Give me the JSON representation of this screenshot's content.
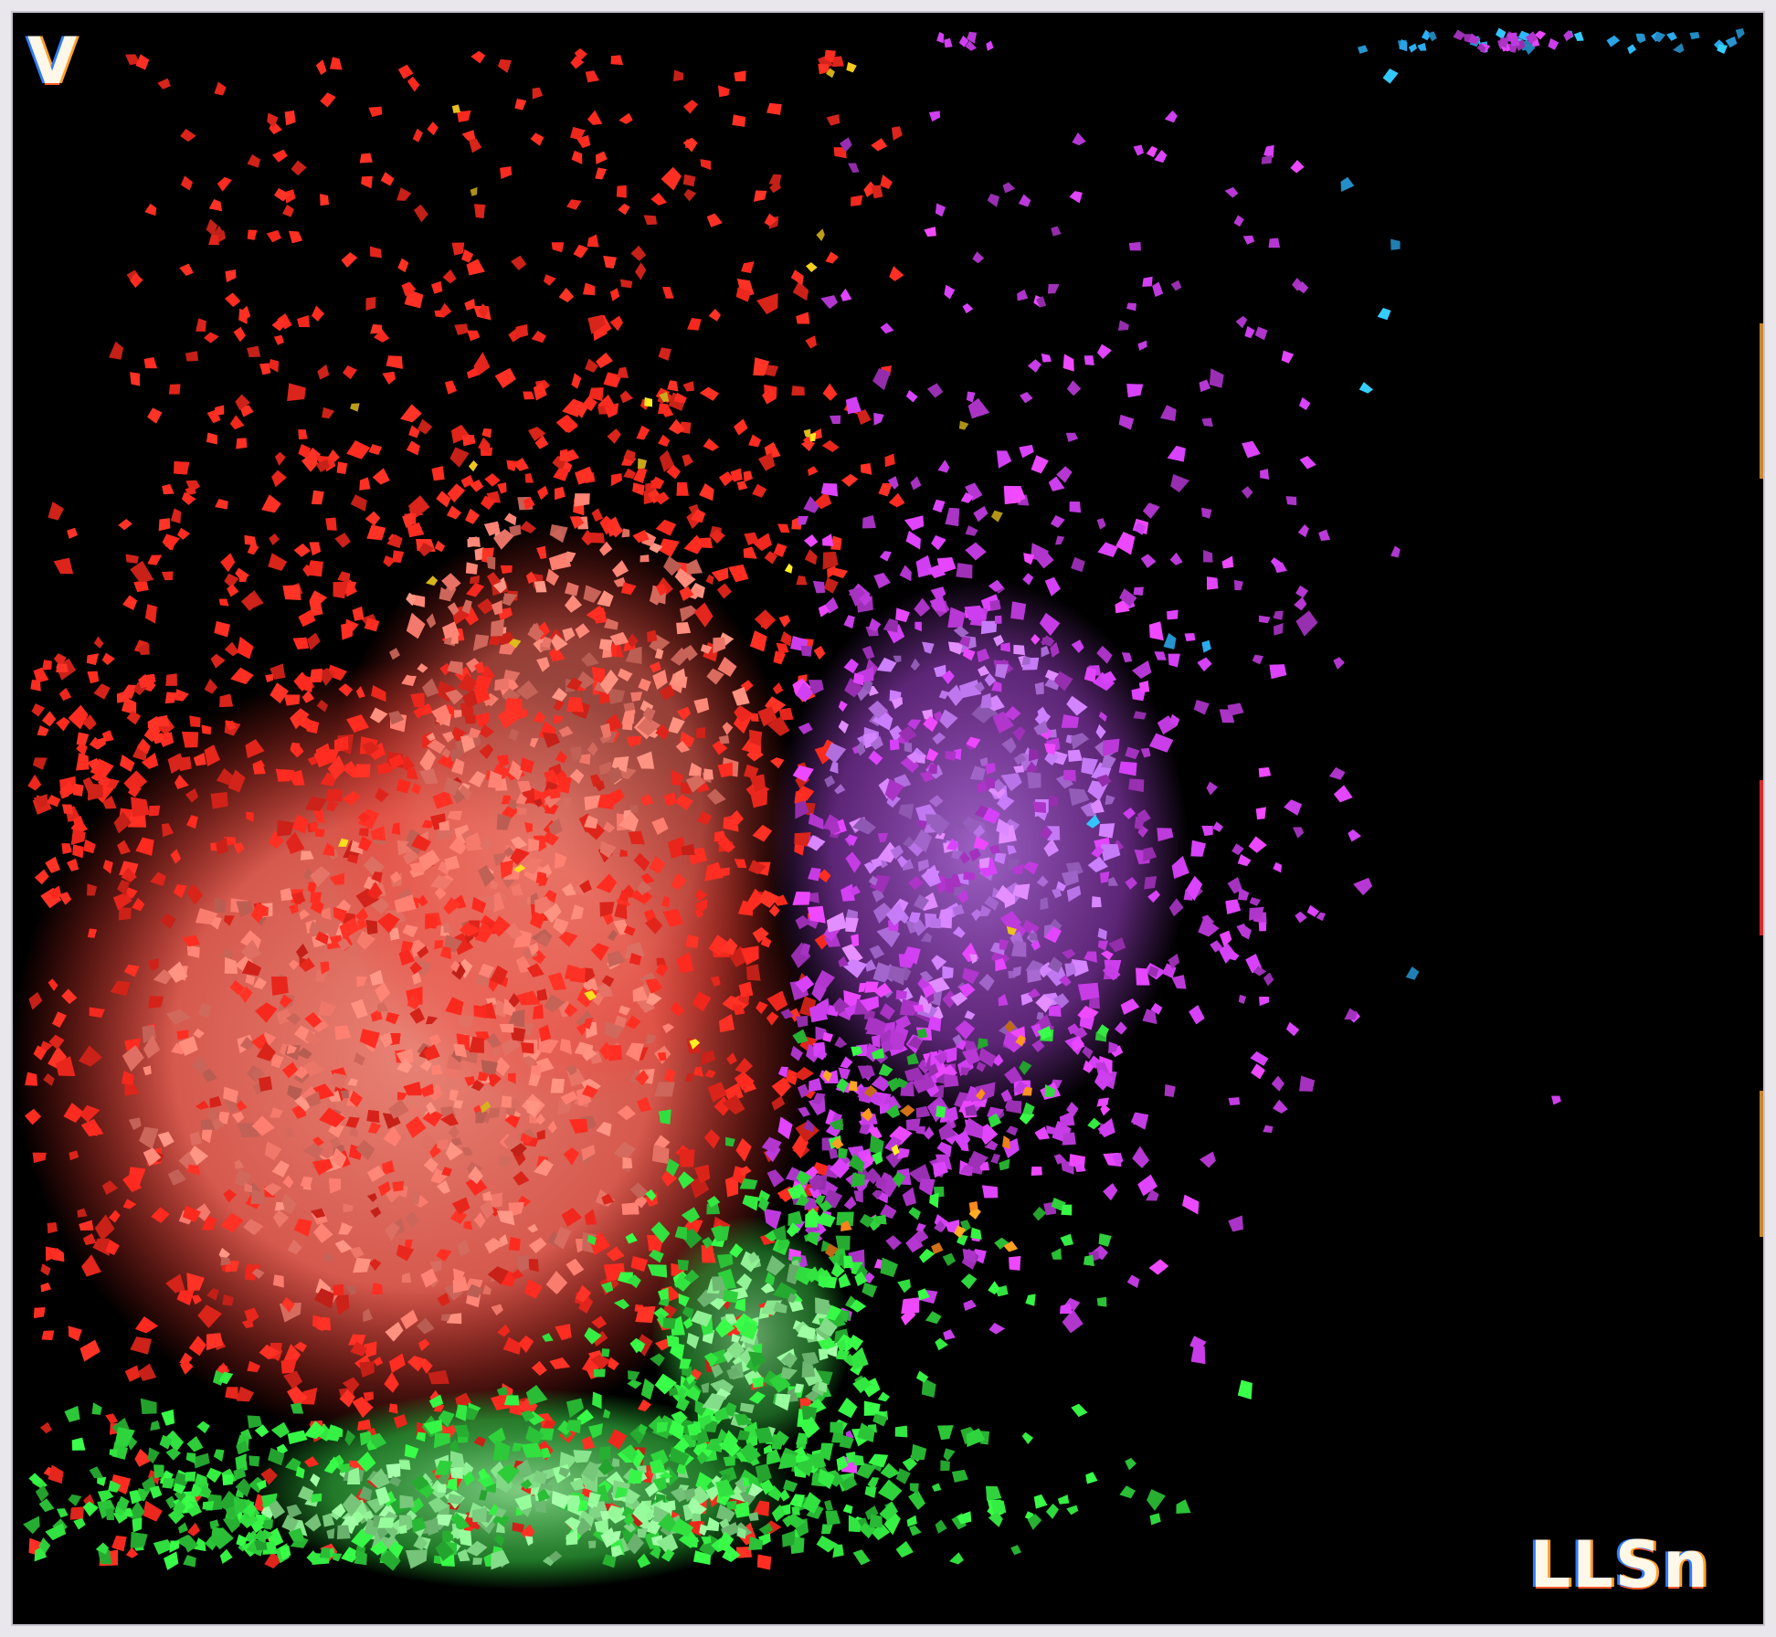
{
  "view": {
    "orientation_top_left": "V",
    "orientation_bottom_right": "LLSn"
  },
  "colors": {
    "background": "#000000",
    "frame": "#e9e6ec",
    "red_cluster": "#ff2a1f",
    "red_core": "#f47a6c",
    "magenta_cluster": "#c13be0",
    "magenta_core": "#b873e6",
    "green_cluster": "#2fd43c",
    "green_core": "#86e08a",
    "cyan_points": "#2aa6e8",
    "yellow_points": "#e8c21c",
    "orange_points": "#ff8a1c"
  },
  "clusters": [
    {
      "name": "red",
      "color_key": "red_cluster",
      "core_color_key": "red_core"
    },
    {
      "name": "magenta",
      "color_key": "magenta_cluster",
      "core_color_key": "magenta_core"
    },
    {
      "name": "green",
      "color_key": "green_cluster",
      "core_color_key": "green_core"
    },
    {
      "name": "cyan",
      "color_key": "cyan_points"
    },
    {
      "name": "yellow",
      "color_key": "yellow_points"
    },
    {
      "name": "orange",
      "color_key": "orange_points"
    }
  ]
}
